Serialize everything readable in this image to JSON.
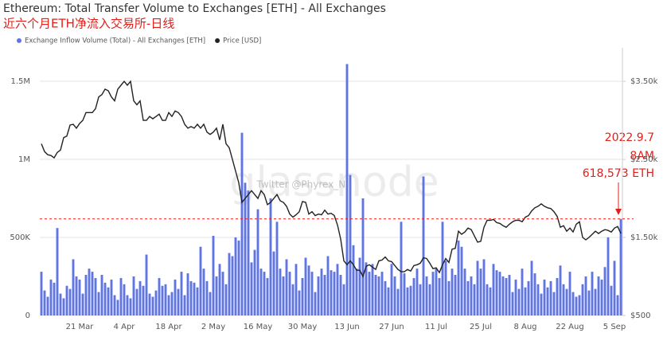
{
  "chart_data": {
    "type": "bar",
    "title": "Ethereum: Total Transfer Volume to Exchanges [ETH] - All Exchanges",
    "subtitle": "近六个月ETH净流入交易所-日线",
    "watermark": "glassnode",
    "credit": "Twitter @Phyrex_Ni",
    "annotations": [
      "2022.9.7",
      "8AM",
      "618,573 ETH"
    ],
    "grid": true,
    "ylim": [
      0,
      1714000
    ],
    "yticks": [
      0,
      {
        "value": 500000,
        "label": "500K"
      },
      {
        "value": 1000000,
        "label": "1M"
      },
      {
        "value": 1500000,
        "label": "1.5M"
      }
    ],
    "y2lim": [
      500,
      3930
    ],
    "y2ticks": [
      {
        "value": 500,
        "label": "$500"
      },
      {
        "value": 1500,
        "label": "$1.50k"
      },
      {
        "value": 2500,
        "label": "$2.50k"
      },
      {
        "value": 3500,
        "label": "$3.50k"
      }
    ],
    "categories": [
      null,
      null,
      null,
      null,
      null,
      null,
      null,
      null,
      null,
      null,
      null,
      null,
      "21 Mar",
      null,
      null,
      null,
      null,
      null,
      null,
      null,
      null,
      null,
      null,
      null,
      null,
      null,
      "4 Apr",
      null,
      null,
      null,
      null,
      null,
      null,
      null,
      null,
      null,
      null,
      null,
      null,
      null,
      "18 Apr",
      null,
      null,
      null,
      null,
      null,
      null,
      null,
      null,
      null,
      null,
      null,
      null,
      null,
      "2 May",
      null,
      null,
      null,
      null,
      null,
      null,
      null,
      null,
      null,
      null,
      null,
      null,
      null,
      "16 May",
      null,
      null,
      null,
      null,
      null,
      null,
      null,
      null,
      null,
      null,
      null,
      null,
      null,
      "30 May",
      null,
      null,
      null,
      null,
      null,
      null,
      null,
      null,
      null,
      null,
      null,
      null,
      null,
      "13 Jun",
      null,
      null,
      null,
      null,
      null,
      null,
      null,
      null,
      null,
      null,
      null,
      null,
      null,
      "27 Jun",
      null,
      null,
      null,
      null,
      null,
      null,
      null,
      null,
      null,
      null,
      null,
      null,
      null,
      "11 Jul",
      null,
      null,
      null,
      null,
      null,
      null,
      null,
      null,
      null,
      null,
      null,
      null,
      null,
      "25 Jul",
      null,
      null,
      null,
      null,
      null,
      null,
      null,
      null,
      null,
      null,
      null,
      null,
      null,
      "8 Aug",
      null,
      null,
      null,
      null,
      null,
      null,
      null,
      null,
      null,
      null,
      null,
      null,
      null,
      "22 Aug",
      null,
      null,
      null,
      null,
      null,
      null,
      null,
      null,
      null,
      null,
      null,
      null,
      null,
      "5 Sep",
      null,
      null
    ],
    "series": [
      {
        "name": "Exchange Inflow Volume (Total) - All Exchanges [ETH]",
        "color": "#5f74e6",
        "type": "bar",
        "values": [
          280000,
          160000,
          120000,
          230000,
          210000,
          560000,
          140000,
          110000,
          190000,
          170000,
          360000,
          250000,
          230000,
          140000,
          260000,
          300000,
          280000,
          240000,
          150000,
          260000,
          210000,
          180000,
          230000,
          130000,
          100000,
          240000,
          200000,
          130000,
          110000,
          250000,
          170000,
          220000,
          190000,
          390000,
          140000,
          120000,
          160000,
          240000,
          190000,
          200000,
          130000,
          150000,
          230000,
          170000,
          280000,
          130000,
          270000,
          220000,
          210000,
          180000,
          440000,
          300000,
          220000,
          150000,
          510000,
          250000,
          330000,
          280000,
          200000,
          400000,
          380000,
          500000,
          480000,
          1170000,
          850000,
          800000,
          340000,
          420000,
          680000,
          300000,
          280000,
          240000,
          750000,
          410000,
          600000,
          300000,
          250000,
          360000,
          280000,
          200000,
          330000,
          160000,
          240000,
          370000,
          320000,
          280000,
          150000,
          250000,
          300000,
          260000,
          380000,
          290000,
          280000,
          330000,
          260000,
          200000,
          1610000,
          900000,
          450000,
          300000,
          370000,
          750000,
          340000,
          280000,
          330000,
          260000,
          250000,
          280000,
          220000,
          180000,
          330000,
          250000,
          170000,
          600000,
          270000,
          180000,
          190000,
          240000,
          300000,
          200000,
          890000,
          250000,
          200000,
          280000,
          300000,
          240000,
          600000,
          350000,
          220000,
          300000,
          260000,
          480000,
          440000,
          300000,
          220000,
          250000,
          200000,
          350000,
          300000,
          360000,
          200000,
          180000,
          330000,
          290000,
          280000,
          250000,
          240000,
          260000,
          150000,
          230000,
          170000,
          300000,
          180000,
          220000,
          350000,
          270000,
          200000,
          140000,
          230000,
          180000,
          220000,
          150000,
          240000,
          320000,
          200000,
          170000,
          280000,
          150000,
          120000,
          130000,
          200000,
          250000,
          160000,
          280000,
          170000,
          250000,
          230000,
          310000,
          500000,
          190000,
          350000,
          130000,
          618573
        ]
      },
      {
        "name": "Price [USD]",
        "color": "#222222",
        "type": "line",
        "axis": "y2",
        "values": [
          2700,
          2600,
          2560,
          2550,
          2520,
          2590,
          2620,
          2780,
          2800,
          2940,
          2950,
          2900,
          2960,
          3000,
          3100,
          3100,
          3100,
          3150,
          3300,
          3330,
          3400,
          3380,
          3300,
          3250,
          3400,
          3450,
          3500,
          3450,
          3500,
          3250,
          3200,
          3250,
          3000,
          3000,
          3050,
          3020,
          3050,
          3080,
          3000,
          3000,
          3100,
          3050,
          3120,
          3100,
          3050,
          2950,
          2900,
          2920,
          2900,
          2950,
          2900,
          2950,
          2850,
          2820,
          2850,
          2900,
          2750,
          2950,
          2700,
          2650,
          2500,
          2350,
          2200,
          1950,
          2000,
          2050,
          2100,
          2050,
          2000,
          2100,
          2050,
          1920,
          1950,
          2000,
          2050,
          1970,
          1950,
          1900,
          1800,
          1760,
          1790,
          1830,
          1960,
          1950,
          1800,
          1830,
          1780,
          1800,
          1790,
          1850,
          1800,
          1810,
          1780,
          1660,
          1480,
          1200,
          1150,
          1200,
          1150,
          1080,
          1080,
          1000,
          1130,
          1150,
          1120,
          1090,
          1200,
          1210,
          1250,
          1200,
          1190,
          1140,
          1090,
          1060,
          1060,
          1090,
          1070,
          1140,
          1150,
          1170,
          1240,
          1230,
          1170,
          1100,
          1110,
          1050,
          1150,
          1230,
          1180,
          1350,
          1360,
          1580,
          1540,
          1570,
          1620,
          1600,
          1520,
          1440,
          1450,
          1630,
          1720,
          1720,
          1730,
          1690,
          1680,
          1650,
          1630,
          1670,
          1700,
          1720,
          1720,
          1700,
          1760,
          1780,
          1840,
          1880,
          1900,
          1930,
          1900,
          1880,
          1870,
          1830,
          1770,
          1630,
          1650,
          1580,
          1620,
          1570,
          1670,
          1700,
          1500,
          1470,
          1500,
          1540,
          1580,
          1550,
          1580,
          1600,
          1590,
          1570,
          1620,
          1640,
          1550
        ]
      }
    ]
  }
}
